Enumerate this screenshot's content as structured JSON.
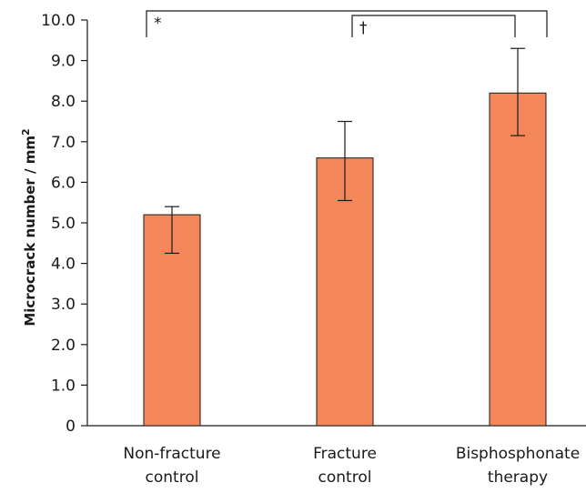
{
  "chart_data": {
    "type": "bar",
    "categories": [
      [
        "Non-fracture",
        "control"
      ],
      [
        "Fracture",
        "control"
      ],
      [
        "Bisphosphonate",
        "therapy"
      ]
    ],
    "values": [
      5.2,
      6.6,
      8.2
    ],
    "error_low": [
      4.25,
      5.55,
      7.15
    ],
    "error_high": [
      5.4,
      7.5,
      9.3
    ],
    "ylabel": "Microcrack number / mm",
    "ylabel_superscript": "2",
    "ylim": [
      0,
      10
    ],
    "yticks": [
      "0",
      "1.0",
      "2.0",
      "3.0",
      "4.0",
      "5.0",
      "6.0",
      "7.0",
      "8.0",
      "9.0",
      "10.0"
    ],
    "significance": [
      {
        "label": "*",
        "from": 0,
        "to": 2
      },
      {
        "label": "†",
        "from": 1,
        "to": 2
      }
    ],
    "bar_color": "#f4875a",
    "grid": false
  }
}
